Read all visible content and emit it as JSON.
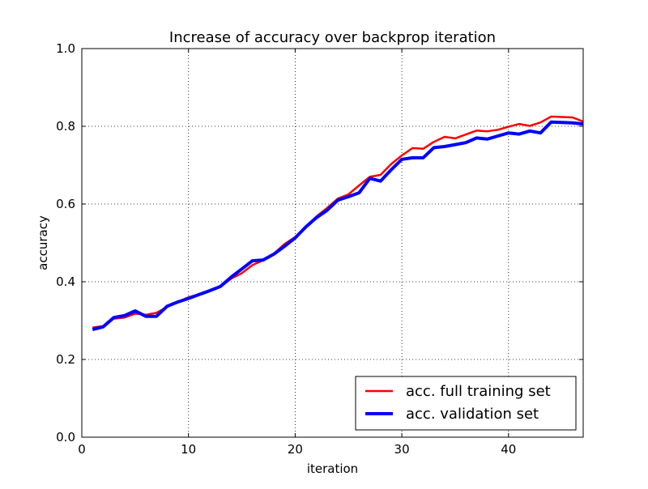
{
  "chart_data": {
    "type": "line",
    "title": "Increase of accuracy over backprop iteration",
    "xlabel": "iteration",
    "ylabel": "accuracy",
    "xlim": [
      0,
      47
    ],
    "ylim": [
      0.0,
      1.0
    ],
    "xticks": [
      0,
      10,
      20,
      30,
      40
    ],
    "xtick_labels": [
      "0",
      "10",
      "20",
      "30",
      "40"
    ],
    "yticks": [
      0.0,
      0.2,
      0.4,
      0.6,
      0.8,
      1.0
    ],
    "ytick_labels": [
      "0.0",
      "0.2",
      "0.4",
      "0.6",
      "0.8",
      "1.0"
    ],
    "grid": true,
    "legend_position": "bottom-right",
    "x": [
      1,
      2,
      3,
      4,
      5,
      6,
      7,
      8,
      9,
      10,
      11,
      12,
      13,
      14,
      15,
      16,
      17,
      18,
      19,
      20,
      21,
      22,
      23,
      24,
      25,
      26,
      27,
      28,
      29,
      30,
      31,
      32,
      33,
      34,
      35,
      36,
      37,
      38,
      39,
      40,
      41,
      42,
      43,
      44,
      45,
      46,
      47
    ],
    "series": [
      {
        "name": "acc. full training set",
        "color": "#ff0000",
        "values": [
          0.282,
          0.286,
          0.305,
          0.308,
          0.318,
          0.315,
          0.32,
          0.335,
          0.348,
          0.36,
          0.368,
          0.378,
          0.387,
          0.408,
          0.422,
          0.443,
          0.455,
          0.472,
          0.497,
          0.515,
          0.542,
          0.568,
          0.59,
          0.614,
          0.625,
          0.648,
          0.67,
          0.675,
          0.703,
          0.725,
          0.744,
          0.742,
          0.76,
          0.773,
          0.769,
          0.779,
          0.789,
          0.787,
          0.791,
          0.799,
          0.806,
          0.801,
          0.81,
          0.825,
          0.824,
          0.823,
          0.812
        ]
      },
      {
        "name": "acc. validation set",
        "color": "#0000ff",
        "values": [
          0.277,
          0.284,
          0.308,
          0.313,
          0.325,
          0.311,
          0.311,
          0.337,
          0.348,
          0.357,
          0.367,
          0.377,
          0.388,
          0.412,
          0.433,
          0.454,
          0.456,
          0.471,
          0.491,
          0.513,
          0.541,
          0.565,
          0.584,
          0.61,
          0.619,
          0.629,
          0.666,
          0.659,
          0.688,
          0.715,
          0.719,
          0.719,
          0.745,
          0.748,
          0.753,
          0.758,
          0.77,
          0.767,
          0.775,
          0.783,
          0.78,
          0.788,
          0.783,
          0.811,
          0.81,
          0.809,
          0.806
        ]
      }
    ]
  }
}
